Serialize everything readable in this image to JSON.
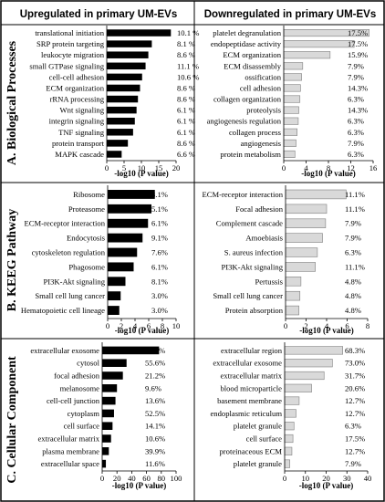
{
  "columns": [
    "Upregulated in primary UM-EVs",
    "Downregulated in primary UM-EVs"
  ],
  "rows": [
    "A. Biological Processes",
    "B. KEEG Pathway",
    "C. Cellular Component"
  ],
  "colors": {
    "up_bar": "#000000",
    "down_bar": "#d9d9d9",
    "down_stroke": "#7f7f7f"
  },
  "chart_data": [
    {
      "type": "bar",
      "orientation": "horizontal",
      "title": "Upregulated in primary UM-EVs",
      "row_label": "A. Biological Processes",
      "xlabel": "-log10 (P value)",
      "xlim": [
        0,
        20
      ],
      "ticks": [
        0,
        5,
        10,
        15,
        20
      ],
      "categories": [
        "translational initiation",
        "SRP protein targeting",
        "leukocyte migration",
        "small GTPase signaling",
        "cell-cell adhesion",
        "ECM organization",
        "rRNA processing",
        "Wnt signaling",
        "integrin signaling",
        "TNF signaling",
        "protein transport",
        "MAPK cascade"
      ],
      "values": [
        18.5,
        13.0,
        12.0,
        11.2,
        10.2,
        9.6,
        9.0,
        8.6,
        8.1,
        7.6,
        6.1,
        4.3
      ],
      "labels": [
        "10.1 %",
        "8.1 %",
        "8.6 %",
        "11.1 %",
        "10.6 %",
        "8.6 %",
        "8.6 %",
        "6.1 %",
        "6.1 %",
        "6.1 %",
        "8.6 %",
        "6.6 %"
      ]
    },
    {
      "type": "bar",
      "orientation": "horizontal",
      "title": "Downregulated in primary UM-EVs",
      "row_label": "A. Biological Processes",
      "xlabel": "-log10 (P value)",
      "xlim": [
        0,
        16
      ],
      "ticks": [
        0,
        4,
        8,
        12,
        16
      ],
      "categories": [
        "platelet degranulation",
        "endopeptidase activity",
        "ECM organization",
        "ECM disassembly",
        "ossification",
        "cell adhesion",
        "collagen organization",
        "proteolysis",
        "angiogenesis regulation",
        "collagen process",
        "angiogenesis",
        "protein metabolism"
      ],
      "values": [
        15.3,
        12.6,
        8.3,
        3.4,
        3.2,
        3.0,
        2.9,
        2.7,
        2.6,
        2.4,
        2.2,
        2.0
      ],
      "labels": [
        "17.5%",
        "17.5%",
        "15.9%",
        "7.9%",
        "7.9%",
        "14.3%",
        "6.3%",
        "14.3%",
        "6.3%",
        "6.3%",
        "7.9%",
        "6.3%"
      ]
    },
    {
      "type": "bar",
      "orientation": "horizontal",
      "title": "Upregulated in primary UM-EVs",
      "row_label": "B. KEEG Pathway",
      "xlabel": "-log10 (P value)",
      "xlim": [
        0,
        10
      ],
      "ticks": [
        0,
        2,
        4,
        6,
        8,
        10
      ],
      "categories": [
        "Ribosome",
        "Proteasome",
        "ECM-receptor interaction",
        "Endocytosis",
        "cytoskeleton regulation",
        "Phagosome",
        "PI3K-Akt signaling",
        "Small cell lung cancer",
        "Hematopoietic cell lineage"
      ],
      "values": [
        6.9,
        6.4,
        5.9,
        5.1,
        4.3,
        3.8,
        2.6,
        1.9,
        1.7
      ],
      "labels": [
        "8.1%",
        "5.1%",
        "6.1%",
        "9.1%",
        "7.6%",
        "6.1%",
        "8.1%",
        "3.0%",
        "3.0%"
      ]
    },
    {
      "type": "bar",
      "orientation": "horizontal",
      "title": "Downregulated in primary UM-EVs",
      "row_label": "B. KEEG Pathway",
      "xlabel": "-log10 (P value)",
      "xlim": [
        0,
        8
      ],
      "ticks": [
        0,
        2,
        4,
        6,
        8
      ],
      "categories": [
        "ECM-receptor interaction",
        "Focal adhesion",
        "Complement cascade",
        "Amoebiasis",
        "S. aureus infection",
        "PI3K-Akt signaling",
        "Pertussis",
        "Small cell lung cancer",
        "Protein absorption"
      ],
      "values": [
        5.9,
        4.0,
        3.9,
        3.6,
        3.1,
        2.9,
        1.5,
        1.4,
        1.3
      ],
      "labels": [
        "11.1%",
        "11.1%",
        "7.9%",
        "7.9%",
        "6.3%",
        "11.1%",
        "4.8%",
        "4.8%",
        "4.8%"
      ]
    },
    {
      "type": "bar",
      "orientation": "horizontal",
      "title": "Upregulated in primary UM-EVs",
      "row_label": "C. Cellular Component",
      "xlabel": "-log10 (P value)",
      "xlim": [
        0,
        100
      ],
      "ticks": [
        0,
        20,
        40,
        60,
        80,
        100
      ],
      "categories": [
        "extracellular exosome",
        "cytosol",
        "focal adhesion",
        "melanosome",
        "cell-cell junction",
        "cytoplasm",
        "cell surface",
        "extracellular matrix",
        "plasma membrane",
        "extracellular space"
      ],
      "values": [
        77,
        33,
        28,
        20,
        18,
        16,
        14,
        12,
        9,
        5
      ],
      "labels": [
        "78.8%",
        "55.6%",
        "21.2%",
        "9.6%",
        "13.6%",
        "52.5%",
        "14.1%",
        "10.6%",
        "39.9%",
        "11.6%"
      ]
    },
    {
      "type": "bar",
      "orientation": "horizontal",
      "title": "Downregulated in primary UM-EVs",
      "row_label": "C. Cellular Component",
      "xlabel": "-log10 (P value)",
      "xlim": [
        0,
        40
      ],
      "ticks": [
        0,
        10,
        20,
        30,
        40
      ],
      "categories": [
        "extracellular region",
        "extracellular exosome",
        "extracellular matrix",
        "blood microparticle",
        "basement membrane",
        "endoplasmic reticulum",
        "platelet granule",
        "cell surface",
        "proteinaceous ECM",
        "platelet granule"
      ],
      "values": [
        28,
        23,
        19,
        13,
        7,
        5.5,
        4.5,
        4.0,
        3.5,
        2.5
      ],
      "labels": [
        "68.3%",
        "73.0%",
        "31.7%",
        "20.6%",
        "12.7%",
        "12.7%",
        "6.3%",
        "17.5%",
        "12.7%",
        "7.9%"
      ]
    }
  ]
}
